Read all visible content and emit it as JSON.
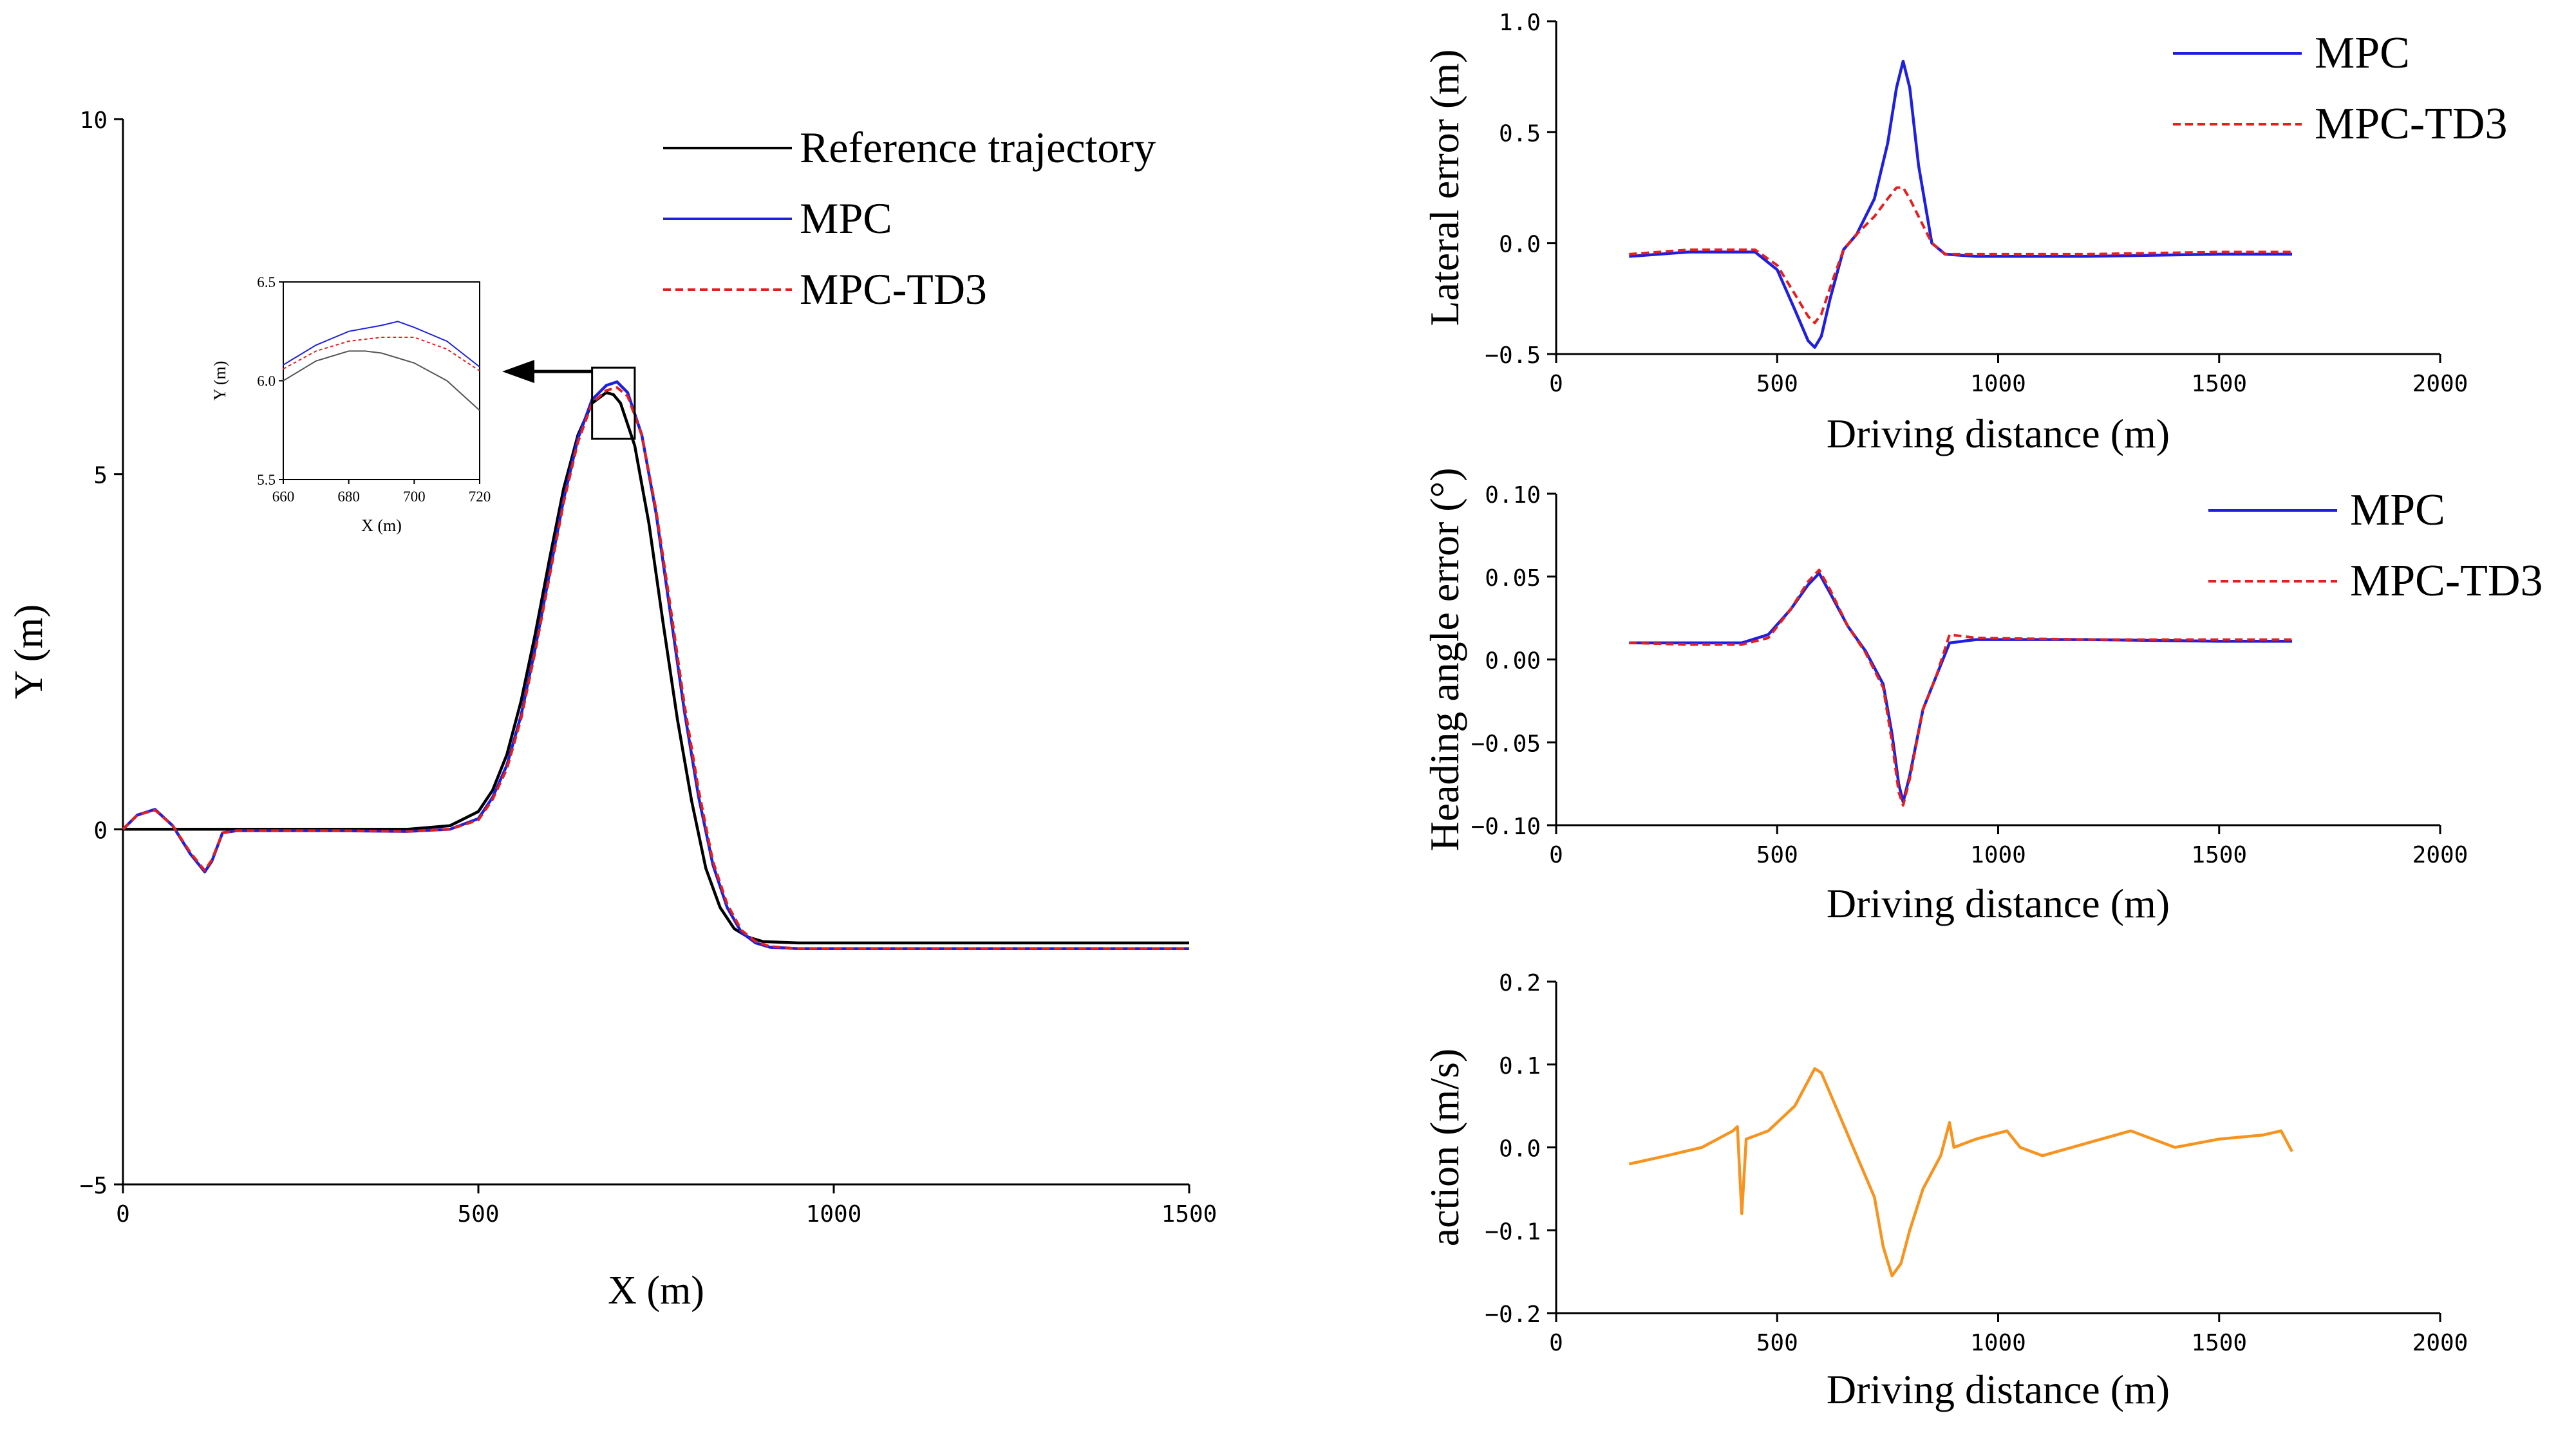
{
  "colors": {
    "reference": "#000000",
    "mpc": "#1f1fe0",
    "mpc_td3": "#e61e1e",
    "action": "#f7931e"
  },
  "chart_data": [
    {
      "id": "trajectory",
      "type": "line",
      "xlabel": "X (m)",
      "ylabel": "Y (m)",
      "xlim": [
        0,
        1500
      ],
      "ylim": [
        -5,
        10
      ],
      "xticks": [
        "0",
        "500",
        "1000",
        "1500"
      ],
      "yticks": [
        "−5",
        "0",
        "5",
        "10"
      ],
      "legend": [
        "Reference trajectory",
        "MPC",
        "MPC-TD3"
      ],
      "series": [
        {
          "name": "Reference trajectory",
          "color": "#000000",
          "x": [
            0,
            120,
            300,
            400,
            460,
            500,
            520,
            540,
            560,
            580,
            600,
            620,
            640,
            660,
            680,
            690,
            700,
            720,
            740,
            760,
            780,
            800,
            820,
            840,
            860,
            880,
            900,
            950,
            1000,
            1500
          ],
          "y": [
            0,
            0,
            0,
            0,
            0.05,
            0.25,
            0.55,
            1.05,
            1.8,
            2.75,
            3.8,
            4.8,
            5.55,
            6.0,
            6.15,
            6.12,
            6.0,
            5.4,
            4.3,
            2.9,
            1.55,
            0.4,
            -0.55,
            -1.1,
            -1.4,
            -1.52,
            -1.58,
            -1.6,
            -1.6,
            -1.6
          ]
        },
        {
          "name": "MPC",
          "color": "#1f1fe0",
          "x": [
            0,
            20,
            45,
            70,
            95,
            115,
            125,
            140,
            160,
            300,
            400,
            460,
            500,
            520,
            540,
            560,
            580,
            600,
            620,
            640,
            660,
            680,
            695,
            710,
            730,
            750,
            770,
            790,
            810,
            830,
            850,
            870,
            890,
            910,
            950,
            1000,
            1500
          ],
          "y": [
            0,
            0.2,
            0.28,
            0.05,
            -0.35,
            -0.6,
            -0.45,
            -0.05,
            -0.02,
            -0.02,
            -0.03,
            0.0,
            0.15,
            0.45,
            0.9,
            1.6,
            2.55,
            3.6,
            4.65,
            5.5,
            6.05,
            6.25,
            6.3,
            6.15,
            5.55,
            4.45,
            3.05,
            1.65,
            0.45,
            -0.5,
            -1.1,
            -1.45,
            -1.6,
            -1.66,
            -1.68,
            -1.68,
            -1.68
          ]
        },
        {
          "name": "MPC-TD3",
          "color": "#e61e1e",
          "dashed": true,
          "x": [
            0,
            20,
            45,
            70,
            95,
            115,
            125,
            140,
            160,
            300,
            400,
            460,
            500,
            520,
            540,
            560,
            580,
            600,
            620,
            640,
            660,
            680,
            695,
            710,
            730,
            750,
            770,
            790,
            810,
            830,
            850,
            870,
            890,
            910,
            950,
            1000,
            1500
          ],
          "y": [
            0,
            0.2,
            0.27,
            0.05,
            -0.33,
            -0.58,
            -0.43,
            -0.05,
            -0.02,
            -0.02,
            -0.03,
            0.0,
            0.13,
            0.42,
            0.85,
            1.55,
            2.5,
            3.55,
            4.6,
            5.45,
            6.0,
            6.18,
            6.22,
            6.1,
            5.55,
            4.5,
            3.15,
            1.75,
            0.55,
            -0.45,
            -1.05,
            -1.42,
            -1.58,
            -1.65,
            -1.68,
            -1.68,
            -1.68
          ]
        }
      ],
      "inset": {
        "xlabel": "X (m)",
        "ylabel": "Y (m)",
        "xlim": [
          660,
          720
        ],
        "ylim": [
          5.5,
          6.5
        ],
        "xticks": [
          "660",
          "680",
          "700",
          "720"
        ],
        "yticks": [
          "5.5",
          "6.0",
          "6.5"
        ],
        "series": [
          {
            "name": "Reference trajectory",
            "x": [
              660,
              670,
              680,
              685,
              690,
              700,
              710,
              720
            ],
            "y": [
              6.0,
              6.1,
              6.15,
              6.15,
              6.14,
              6.09,
              6.0,
              5.85
            ]
          },
          {
            "name": "MPC",
            "x": [
              660,
              670,
              680,
              690,
              695,
              700,
              710,
              720
            ],
            "y": [
              6.08,
              6.18,
              6.25,
              6.28,
              6.3,
              6.27,
              6.2,
              6.07
            ]
          },
          {
            "name": "MPC-TD3",
            "x": [
              660,
              670,
              680,
              690,
              700,
              710,
              720
            ],
            "y": [
              6.06,
              6.15,
              6.2,
              6.22,
              6.22,
              6.16,
              6.05
            ]
          }
        ]
      }
    },
    {
      "id": "lateral",
      "type": "line",
      "xlabel": "Driving distance (m)",
      "ylabel": "Lateral error (m)",
      "xlim": [
        0,
        2000
      ],
      "ylim": [
        -0.5,
        1.0
      ],
      "xticks": [
        "0",
        "500",
        "1000",
        "1500",
        "2000"
      ],
      "yticks": [
        "−0.5",
        "0.0",
        "0.5",
        "1.0"
      ],
      "legend": [
        "MPC",
        "MPC-TD3"
      ],
      "series": [
        {
          "name": "MPC",
          "color": "#1f1fe0",
          "x": [
            165,
            300,
            450,
            500,
            540,
            570,
            585,
            600,
            620,
            650,
            680,
            720,
            750,
            770,
            785,
            800,
            820,
            850,
            880,
            950,
            1200,
            1500,
            1665
          ],
          "y": [
            -0.06,
            -0.04,
            -0.04,
            -0.12,
            -0.3,
            -0.44,
            -0.47,
            -0.42,
            -0.25,
            -0.03,
            0.04,
            0.2,
            0.45,
            0.7,
            0.82,
            0.7,
            0.35,
            0.0,
            -0.05,
            -0.06,
            -0.06,
            -0.05,
            -0.05
          ]
        },
        {
          "name": "MPC-TD3",
          "color": "#e61e1e",
          "dashed": true,
          "x": [
            165,
            300,
            450,
            500,
            540,
            570,
            585,
            600,
            620,
            650,
            680,
            720,
            750,
            770,
            785,
            800,
            820,
            850,
            880,
            950,
            1200,
            1500,
            1665
          ],
          "y": [
            -0.05,
            -0.03,
            -0.03,
            -0.1,
            -0.23,
            -0.33,
            -0.36,
            -0.32,
            -0.2,
            -0.03,
            0.04,
            0.12,
            0.2,
            0.25,
            0.25,
            0.2,
            0.12,
            0.0,
            -0.05,
            -0.05,
            -0.05,
            -0.04,
            -0.04
          ]
        }
      ]
    },
    {
      "id": "heading",
      "type": "line",
      "xlabel": "Driving distance (m)",
      "ylabel": "Heading angle error (°)",
      "xlim": [
        0,
        2000
      ],
      "ylim": [
        -0.1,
        0.1
      ],
      "xticks": [
        "0",
        "500",
        "1000",
        "1500",
        "2000"
      ],
      "yticks": [
        "0.10",
        "0.05",
        "0.00",
        "−0.05",
        "−0.10"
      ],
      "legend": [
        "MPC",
        "MPC-TD3"
      ],
      "series": [
        {
          "name": "MPC",
          "color": "#1f1fe0",
          "x": [
            165,
            300,
            420,
            480,
            530,
            570,
            595,
            620,
            660,
            700,
            740,
            760,
            775,
            785,
            800,
            830,
            860,
            890,
            950,
            1200,
            1500,
            1665
          ],
          "y": [
            0.01,
            0.01,
            0.01,
            0.015,
            0.03,
            0.045,
            0.052,
            0.04,
            0.02,
            0.005,
            -0.015,
            -0.045,
            -0.075,
            -0.086,
            -0.07,
            -0.03,
            -0.01,
            0.01,
            0.012,
            0.012,
            0.011,
            0.011
          ]
        },
        {
          "name": "MPC-TD3",
          "color": "#e61e1e",
          "dashed": true,
          "x": [
            165,
            300,
            420,
            480,
            530,
            570,
            595,
            620,
            660,
            700,
            740,
            760,
            775,
            785,
            800,
            830,
            860,
            890,
            950,
            1200,
            1500,
            1665
          ],
          "y": [
            0.01,
            0.009,
            0.009,
            0.013,
            0.03,
            0.047,
            0.054,
            0.042,
            0.02,
            0.004,
            -0.017,
            -0.05,
            -0.08,
            -0.088,
            -0.072,
            -0.03,
            -0.01,
            0.015,
            0.013,
            0.012,
            0.012,
            0.012
          ]
        }
      ]
    },
    {
      "id": "action",
      "type": "line",
      "xlabel": "Driving distance (m)",
      "ylabel": "action (m/s)",
      "xlim": [
        0,
        2000
      ],
      "ylim": [
        -0.2,
        0.2
      ],
      "xticks": [
        "0",
        "500",
        "1000",
        "1500",
        "2000"
      ],
      "yticks": [
        "0.2",
        "0.1",
        "0.0",
        "−0.1",
        "−0.2"
      ],
      "legend": [],
      "series": [
        {
          "name": "action",
          "color": "#f7931e",
          "x": [
            165,
            250,
            330,
            400,
            410,
            420,
            430,
            480,
            540,
            585,
            600,
            640,
            680,
            720,
            740,
            760,
            780,
            800,
            830,
            870,
            890,
            900,
            950,
            1020,
            1050,
            1100,
            1200,
            1300,
            1400,
            1500,
            1600,
            1640,
            1665
          ],
          "y": [
            -0.02,
            -0.01,
            0.0,
            0.02,
            0.025,
            -0.08,
            0.01,
            0.02,
            0.05,
            0.095,
            0.09,
            0.04,
            -0.01,
            -0.06,
            -0.12,
            -0.155,
            -0.14,
            -0.1,
            -0.05,
            -0.01,
            0.03,
            0.0,
            0.01,
            0.02,
            0.0,
            -0.01,
            0.005,
            0.02,
            0.0,
            0.01,
            0.015,
            0.02,
            -0.005
          ]
        }
      ]
    }
  ]
}
